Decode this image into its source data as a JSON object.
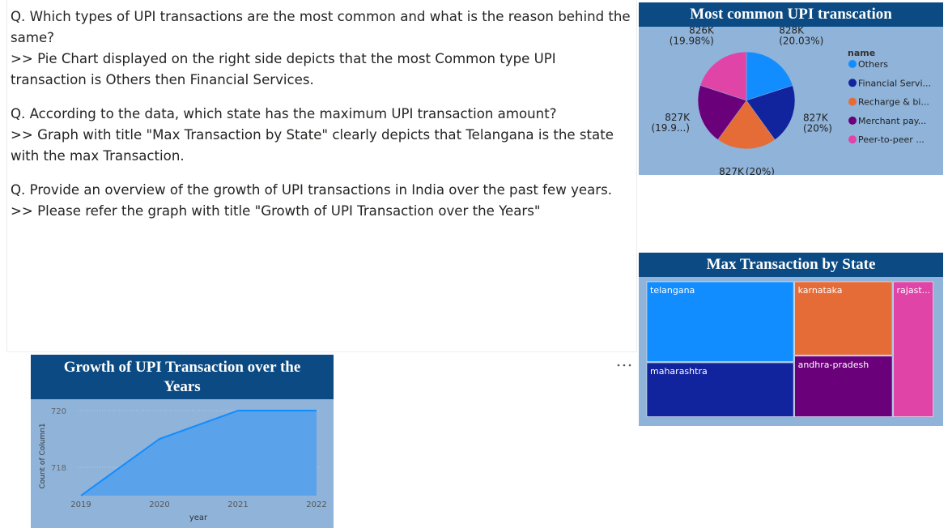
{
  "text_box": {
    "paragraphs": [
      {
        "question": "Q. Which types of UPI transactions are the most common and what is the  reason behind the same?",
        "answer": ">> Pie Chart displayed on the right side depicts that the most Common type UPI transaction is Others then Financial Services."
      },
      {
        "question": "Q. According to the data, which state has the maximum UPI transaction  amount?",
        "answer": ">> Graph with title \"Max Transaction by State\" clearly depicts that Telangana is the state with the max Transaction."
      },
      {
        "question": "Q. Provide an overview of the growth of UPI transactions in India over the past  few years.",
        "answer": ">> Please refer the graph with title \"Growth of UPI Transaction over the Years\""
      }
    ]
  },
  "chart_data": [
    {
      "type": "pie",
      "title": "Most common UPI transcation",
      "legend_title": "name",
      "legend_position": "right",
      "categories": [
        "Others",
        "Financial Servi...",
        "Recharge & bi...",
        "Merchant pay...",
        "Peer-to-peer ..."
      ],
      "values": [
        828000,
        827000,
        827000,
        827000,
        826000
      ],
      "value_labels": [
        "828K",
        "827K",
        "827K",
        "827K",
        "826K"
      ],
      "percent_labels": [
        "(20.03%)",
        "(20%)",
        "(20%)",
        "(19.9...)",
        "(19.98%)"
      ],
      "colors": [
        "#118dff",
        "#12239e",
        "#e66c37",
        "#6b007b",
        "#e044a7"
      ]
    },
    {
      "type": "treemap",
      "title": "Max Transaction by State",
      "categories": [
        "telangana",
        "maharashtra",
        "karnataka",
        "andhra-pradesh",
        "rajast..."
      ],
      "values": [
        18100,
        12300,
        11100,
        9200,
        8400
      ],
      "colors": [
        "#118dff",
        "#12239e",
        "#e66c37",
        "#6b007b",
        "#e044a7"
      ]
    },
    {
      "type": "area",
      "title": "Growth of UPI Transaction over the Years",
      "x_label": "year",
      "y_label": "Count of Column1",
      "categories": [
        "2019",
        "2020",
        "2021",
        "2022"
      ],
      "values": [
        717,
        719,
        720,
        720
      ],
      "ylim": [
        717,
        720.2
      ],
      "yticks": [
        718,
        720
      ],
      "grid": true,
      "color": "#118dff",
      "fill": "#5aa2ea"
    }
  ]
}
